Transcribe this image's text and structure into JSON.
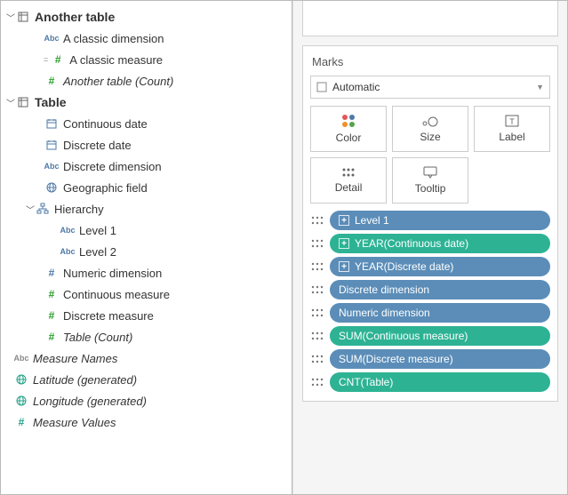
{
  "marks": {
    "title": "Marks",
    "dropdown_label": "Automatic",
    "buttons": {
      "color": "Color",
      "size": "Size",
      "label": "Label",
      "detail": "Detail",
      "tooltip": "Tooltip"
    }
  },
  "colors": {
    "dim_blue": "#4e79a7",
    "meas_green": "#2ca02c",
    "gen_teal": "#1fa086",
    "pill_blue": "#5b8db8",
    "pill_green": "#2db394"
  },
  "data_pane": {
    "tables": [
      {
        "name": "Another table",
        "fields": [
          {
            "icon": "abc",
            "color": "blue",
            "label": "A classic dimension",
            "italic": false
          },
          {
            "icon": "hash",
            "color": "green",
            "label": "A classic measure",
            "italic": false,
            "calc": true
          },
          {
            "icon": "hash",
            "color": "green",
            "label": "Another table (Count)",
            "italic": true
          }
        ]
      },
      {
        "name": "Table",
        "fields": [
          {
            "icon": "date",
            "color": "blue",
            "label": "Continuous date"
          },
          {
            "icon": "date",
            "color": "blue",
            "label": "Discrete date"
          },
          {
            "icon": "abc",
            "color": "blue",
            "label": "Discrete dimension"
          },
          {
            "icon": "geo",
            "color": "blue",
            "label": "Geographic field"
          },
          {
            "icon": "hier",
            "color": "blue",
            "label": "Hierarchy",
            "expandable": true,
            "children": [
              {
                "icon": "abc",
                "color": "blue",
                "label": "Level 1"
              },
              {
                "icon": "abc",
                "color": "blue",
                "label": "Level 2"
              }
            ]
          },
          {
            "icon": "hash",
            "color": "blue",
            "label": "Numeric dimension"
          },
          {
            "icon": "hash",
            "color": "green",
            "label": "Continuous measure"
          },
          {
            "icon": "hash",
            "color": "green",
            "label": "Discrete measure"
          },
          {
            "icon": "hash",
            "color": "green",
            "label": "Table (Count)",
            "italic": true
          }
        ]
      }
    ],
    "generated": [
      {
        "icon": "abc",
        "color": "gray",
        "label": "Measure Names",
        "italic": true
      },
      {
        "icon": "geo",
        "color": "teal",
        "label": "Latitude (generated)",
        "italic": true
      },
      {
        "icon": "geo",
        "color": "teal",
        "label": "Longitude (generated)",
        "italic": true
      },
      {
        "icon": "hash",
        "color": "teal",
        "label": "Measure Values",
        "italic": true
      }
    ]
  },
  "pills": [
    {
      "color": "blue",
      "plus": true,
      "label": "Level 1"
    },
    {
      "color": "green",
      "plus": true,
      "label": "YEAR(Continuous date)"
    },
    {
      "color": "blue",
      "plus": true,
      "label": "YEAR(Discrete date)"
    },
    {
      "color": "blue",
      "plus": false,
      "label": "Discrete dimension"
    },
    {
      "color": "blue",
      "plus": false,
      "label": "Numeric dimension"
    },
    {
      "color": "green",
      "plus": false,
      "label": "SUM(Continuous measure)"
    },
    {
      "color": "blue",
      "plus": false,
      "label": "SUM(Discrete measure)"
    },
    {
      "color": "green",
      "plus": false,
      "label": "CNT(Table)"
    }
  ]
}
